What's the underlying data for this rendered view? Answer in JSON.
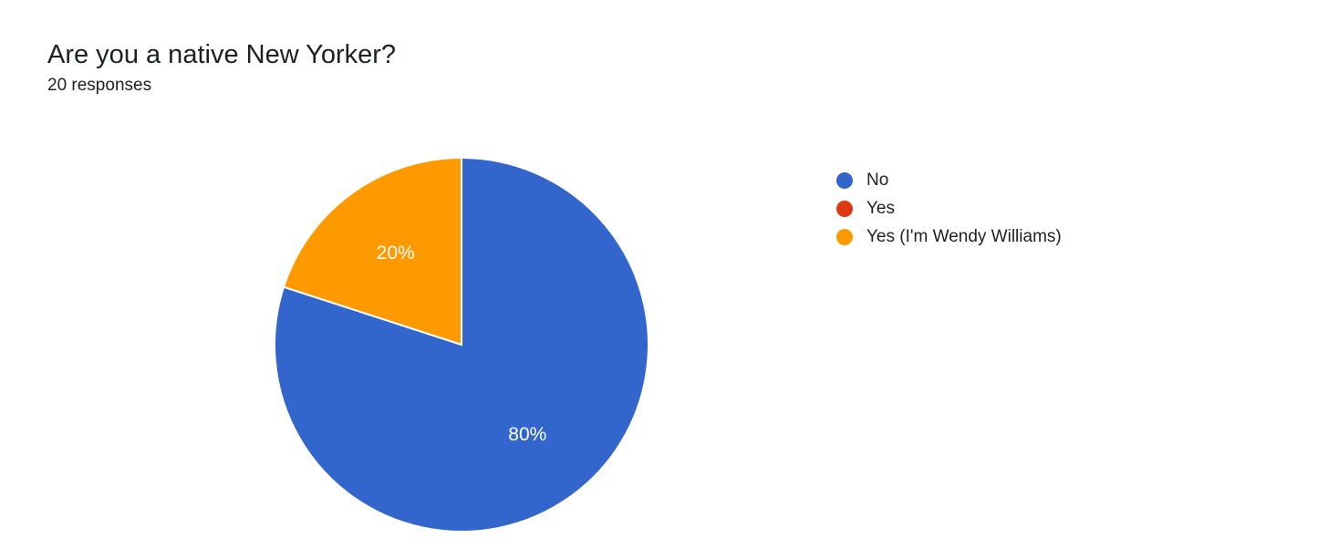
{
  "header": {
    "title": "Are you a native New Yorker?",
    "subtitle": "20 responses"
  },
  "chart": {
    "type": "pie",
    "radius": 205,
    "background_color": "#ffffff",
    "stroke_color": "#ffffff",
    "stroke_width": 2,
    "label_color": "#ffffff",
    "label_fontsize": 21,
    "slices": [
      {
        "label": "No",
        "value": 80,
        "percent_label": "80%",
        "color": "#3366cc"
      },
      {
        "label": "Yes",
        "value": 0,
        "percent_label": "",
        "color": "#dc3912"
      },
      {
        "label": "Yes (I'm Wendy Williams)",
        "value": 20,
        "percent_label": "20%",
        "color": "#ff9900"
      }
    ]
  },
  "legend": {
    "dot_radius": 9,
    "label_fontsize": 19,
    "text_color": "#202124",
    "items": [
      {
        "label": "No",
        "color": "#3366cc"
      },
      {
        "label": "Yes",
        "color": "#dc3912"
      },
      {
        "label": "Yes (I'm Wendy Williams)",
        "color": "#ff9900"
      }
    ]
  }
}
